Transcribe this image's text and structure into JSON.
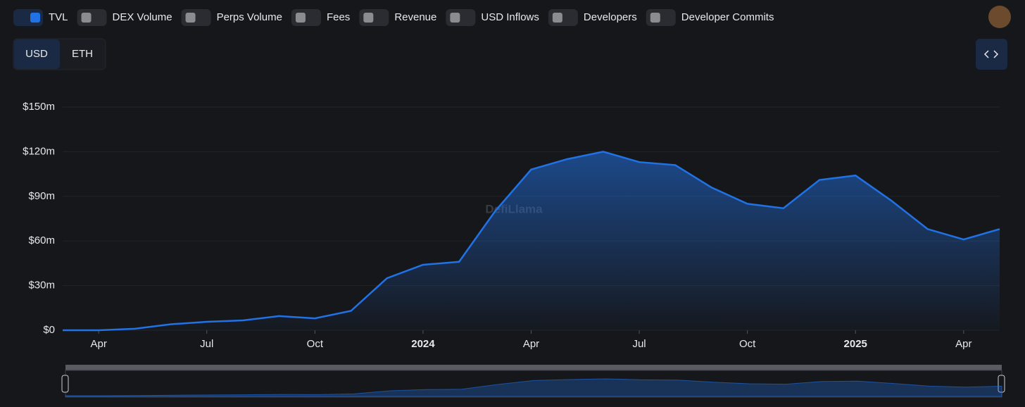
{
  "toggles": [
    "TVL",
    "DEX Volume",
    "Perps Volume",
    "Fees",
    "Revenue",
    "USD Inflows",
    "Developers",
    "Developer Commits"
  ],
  "currency_options": [
    "USD",
    "ETH"
  ],
  "watermark": "DefiLlama",
  "chart_data": {
    "type": "area",
    "x": [
      "2023-03",
      "2023-04",
      "2023-05",
      "2023-06",
      "2023-07",
      "2023-08",
      "2023-09",
      "2023-10",
      "2023-11",
      "2023-12",
      "2024-01",
      "2024-02",
      "2024-03",
      "2024-04",
      "2024-05",
      "2024-06",
      "2024-07",
      "2024-08",
      "2024-09",
      "2024-10",
      "2024-11",
      "2024-12",
      "2025-01",
      "2025-02",
      "2025-03",
      "2025-04",
      "2025-05"
    ],
    "series": [
      {
        "name": "TVL",
        "color": "#2172e5",
        "values": [
          0,
          0,
          1,
          4,
          5.7,
          6.6,
          9.5,
          8,
          13,
          35,
          44,
          46,
          80,
          108,
          115,
          120,
          113,
          111,
          96,
          85,
          82,
          101,
          104,
          87,
          68,
          61,
          68
        ]
      }
    ],
    "ylim": [
      0,
      150
    ],
    "yticks": [
      {
        "value": 0,
        "label": "$0"
      },
      {
        "value": 30,
        "label": "$30m"
      },
      {
        "value": 60,
        "label": "$60m"
      },
      {
        "value": 90,
        "label": "$90m"
      },
      {
        "value": 120,
        "label": "$120m"
      },
      {
        "value": 150,
        "label": "$150m"
      }
    ],
    "xticks": [
      {
        "value": "2023-04",
        "label": "Apr"
      },
      {
        "value": "2023-07",
        "label": "Jul"
      },
      {
        "value": "2023-10",
        "label": "Oct"
      },
      {
        "value": "2024-01",
        "label": "2024"
      },
      {
        "value": "2024-04",
        "label": "Apr"
      },
      {
        "value": "2024-07",
        "label": "Jul"
      },
      {
        "value": "2024-10",
        "label": "Oct"
      },
      {
        "value": "2025-01",
        "label": "2025"
      },
      {
        "value": "2025-04",
        "label": "Apr"
      }
    ],
    "grid": true
  }
}
